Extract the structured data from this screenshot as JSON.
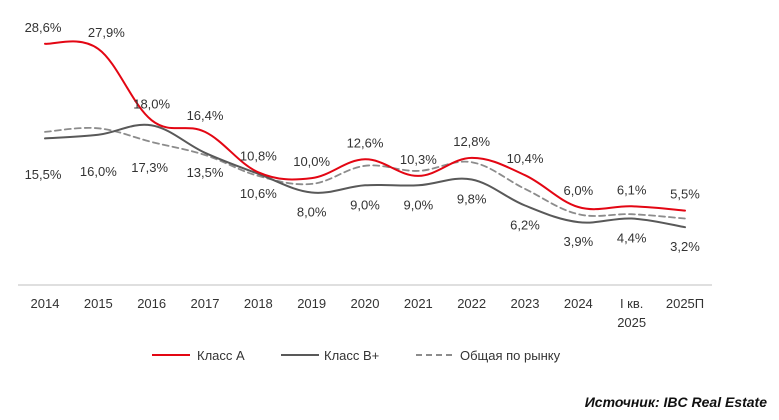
{
  "chart_data": {
    "type": "line",
    "categories": [
      "2014",
      "2015",
      "2016",
      "2017",
      "2018",
      "2019",
      "2020",
      "2021",
      "2022",
      "2023",
      "2024",
      "I кв. 2025",
      "2025П"
    ],
    "series": [
      {
        "name": "Класс А",
        "values": [
          28.6,
          27.9,
          18.0,
          16.4,
          10.8,
          10.0,
          12.6,
          10.3,
          12.8,
          10.4,
          6.0,
          6.1,
          5.5
        ],
        "labels": [
          "28,6%",
          "27,9%",
          "18,0%",
          "16,4%",
          "10,8%",
          "10,0%",
          "12,6%",
          "10,3%",
          "12,8%",
          "10,4%",
          "6,0%",
          "6,1%",
          "5,5%"
        ],
        "color": "#e30613",
        "style": "solid"
      },
      {
        "name": "Класс В+",
        "values": [
          15.5,
          16.0,
          17.3,
          13.5,
          10.6,
          8.0,
          9.0,
          9.0,
          9.8,
          6.2,
          3.9,
          4.4,
          3.2
        ],
        "labels": [
          "15,5%",
          "16,0%",
          "17,3%",
          "13,5%",
          "10,6%",
          "8,0%",
          "9,0%",
          "9,0%",
          "9,8%",
          "6,2%",
          "3,9%",
          "4,4%",
          "3,2%"
        ],
        "color": "#595959",
        "style": "solid"
      },
      {
        "name": "Общая по рынку",
        "values": [
          16.4,
          16.9,
          15.0,
          13.2,
          10.3,
          9.2,
          11.7,
          11.0,
          12.2,
          8.5,
          5.0,
          5.0,
          4.4
        ],
        "labels": [],
        "color": "#8c8c8c",
        "style": "dashed"
      }
    ],
    "ylim": [
      0,
      30
    ],
    "xlabel": "",
    "ylabel": "",
    "grid": false,
    "legend_position": "bottom"
  },
  "source_text": "Источник: IBC Real Estate"
}
